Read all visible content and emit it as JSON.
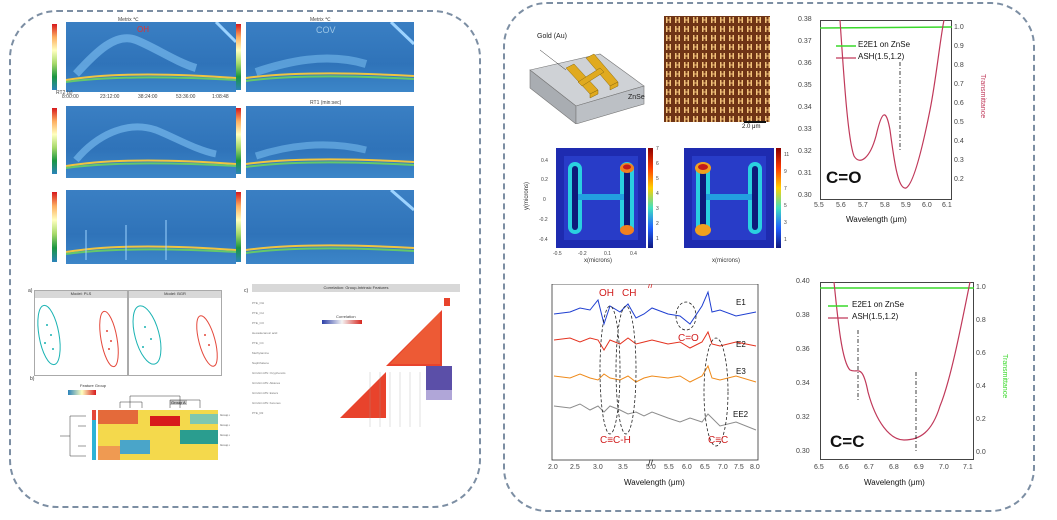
{
  "left": {
    "chrom": [
      {
        "title_mid": "Metrix ℃",
        "tag": "OH",
        "tag_color": "#e2312f",
        "ylab": "RT2 (s)",
        "xlab": "RT1 (min:sec)",
        "xticks": [
          "8:00:00",
          "23:12:00",
          "38:24:00",
          "53:36:00",
          "1:08:48"
        ]
      },
      {
        "title_mid": "Metrix ℃",
        "tag": "COV",
        "tag_color": "#9cc6e6",
        "ylab": "RT2 (s)",
        "xlab": "RT1 (min:sec)",
        "xticks": [
          "8:00:00",
          "23:12:00",
          "38:24:00",
          "53:36:00",
          "1:08:48"
        ]
      }
    ],
    "pca": {
      "a": "a)",
      "title1": "Model: PLS",
      "title2": "Model: BGR"
    },
    "corr": {
      "label": "c)",
      "title": "Correlation: Group-Intrinsic Features",
      "legend": "Correlation"
    },
    "heat": {
      "label": "b)",
      "legend": "Feature Group",
      "group": "Group A"
    }
  },
  "right": {
    "device": {
      "gold": "Gold (Au)",
      "sub": "ZnSe",
      "scale": "2.0 μm"
    },
    "fields": {
      "ylabel": "y(microns)",
      "xlabel": "x(microns)",
      "yticks": [
        "0.4",
        "0.2",
        "0",
        "-0.2",
        "-0.4"
      ],
      "xticks": [
        "-0.5",
        "-0.2",
        "0.1",
        "0.4"
      ],
      "cb1": [
        "7",
        "6",
        "5",
        "4",
        "3",
        "2",
        "1"
      ],
      "cb2": [
        "11",
        "9",
        "7",
        "5",
        "3",
        "1"
      ]
    },
    "spectra": {
      "xlabel": "Wavelength (μm)",
      "xticks_left": [
        "2.0",
        "2.5",
        "3.0",
        "3.5"
      ],
      "xticks_right": [
        "5.0",
        "5.5",
        "6.0",
        "6.5",
        "7.0",
        "7.5",
        "8.0"
      ],
      "series": [
        "E1",
        "E2",
        "E3",
        "EE2"
      ],
      "colors": [
        "#1f3fd1",
        "#e4321f",
        "#ef8a1a",
        "#8c8c8c"
      ],
      "ann_oh": "OH",
      "ann_ch": "CH",
      "ann_co": "C=O",
      "ann_cch": "C≡C-H",
      "ann_cc": "C≡C"
    },
    "co_plot": {
      "big": "C=O",
      "xlabel": "Wavelength (μm)",
      "ylabel_right": "Transmittance",
      "legend1": "E2E1 on ZnSe",
      "legend2": "ASH(1.5,1.2)",
      "xticks": [
        "5.5",
        "5.6",
        "5.7",
        "5.8",
        "5.9",
        "6.0",
        "6.1"
      ],
      "yticks_left": [
        "0.38",
        "0.37",
        "0.36",
        "0.35",
        "0.34",
        "0.33",
        "0.32",
        "0.31",
        "0.30"
      ],
      "yticks_right": [
        "1.0",
        "0.9",
        "0.8",
        "0.7",
        "0.6",
        "0.5",
        "0.4",
        "0.3",
        "0.2"
      ]
    },
    "cc_plot": {
      "big": "C=C",
      "xlabel": "Wavelength (μm)",
      "ylabel_right": "Transmittance",
      "legend1": "E2E1 on ZnSe",
      "legend2": "ASH(1.5,1.2)",
      "xticks": [
        "6.5",
        "6.6",
        "6.7",
        "6.8",
        "6.9",
        "7.0",
        "7.1"
      ],
      "yticks_left": [
        "0.40",
        "0.38",
        "0.36",
        "0.34",
        "0.32",
        "0.30"
      ],
      "yticks_right": [
        "1.0",
        "0.8",
        "0.6",
        "0.4",
        "0.2",
        "0.0"
      ]
    },
    "colors": {
      "green": "#39d92a",
      "red": "#c0395a",
      "black": "#111111"
    }
  }
}
